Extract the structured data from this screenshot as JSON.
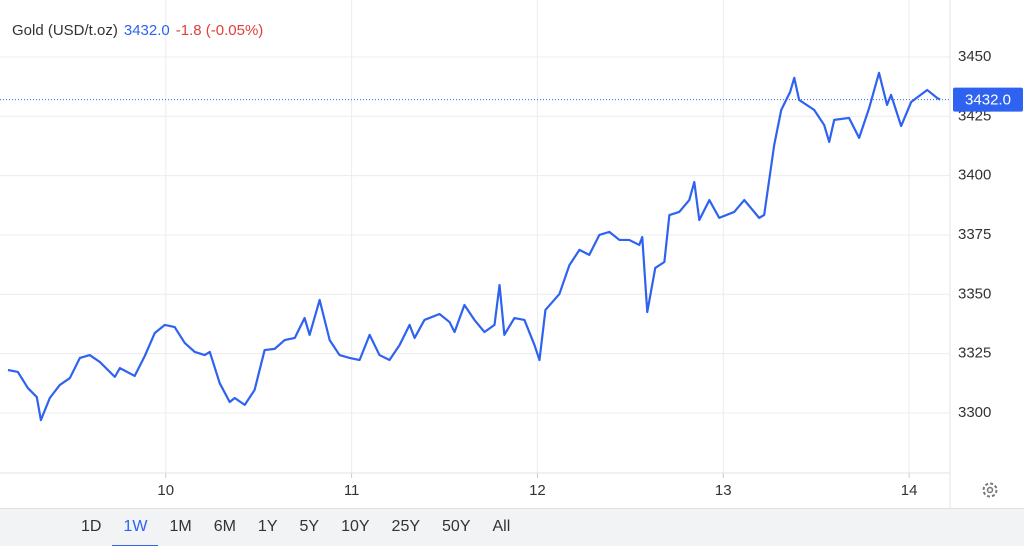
{
  "chart_data": {
    "type": "line",
    "title": "Gold (USD/t.oz)",
    "last_price": {
      "value": 3432,
      "label": "3432.0"
    },
    "change": "-1.8 (-0.05%)",
    "x": [
      9.151,
      9.204,
      9.258,
      9.306,
      9.328,
      9.376,
      9.43,
      9.484,
      9.538,
      9.591,
      9.645,
      9.726,
      9.753,
      9.833,
      9.887,
      9.941,
      9.995,
      10.048,
      10.102,
      10.156,
      10.21,
      10.237,
      10.29,
      10.344,
      10.371,
      10.425,
      10.478,
      10.532,
      10.586,
      10.64,
      10.694,
      10.747,
      10.774,
      10.828,
      10.882,
      10.935,
      10.989,
      11.043,
      11.097,
      11.15,
      11.204,
      11.258,
      11.312,
      11.339,
      11.392,
      11.473,
      11.527,
      11.554,
      11.607,
      11.661,
      11.715,
      11.769,
      11.796,
      11.822,
      11.876,
      11.93,
      11.984,
      12.011,
      12.043,
      12.118,
      12.172,
      12.226,
      12.279,
      12.333,
      12.387,
      12.441,
      12.494,
      12.548,
      12.564,
      12.591,
      12.634,
      12.683,
      12.71,
      12.763,
      12.817,
      12.844,
      12.871,
      12.925,
      12.978,
      13.059,
      13.113,
      13.193,
      13.22,
      13.274,
      13.312,
      13.36,
      13.382,
      13.408,
      13.489,
      13.543,
      13.57,
      13.597,
      13.677,
      13.731,
      13.785,
      13.838,
      13.881,
      13.903,
      13.957,
      14.011,
      14.097,
      14.151,
      14.167
    ],
    "series": [
      {
        "color": "#2e62f0",
        "values": [
          3318.1,
          3317.3,
          3310.5,
          3306.7,
          3297.0,
          3306.3,
          3311.8,
          3314.7,
          3323.2,
          3324.4,
          3321.5,
          3315.2,
          3318.9,
          3315.6,
          3324.0,
          3333.7,
          3337.1,
          3336.2,
          3329.5,
          3325.7,
          3324.4,
          3325.7,
          3312.6,
          3304.6,
          3306.3,
          3303.4,
          3309.7,
          3326.5,
          3327.0,
          3330.7,
          3331.6,
          3340.0,
          3332.9,
          3347.6,
          3330.7,
          3324.4,
          3323.2,
          3322.3,
          3332.9,
          3324.4,
          3322.3,
          3328.6,
          3337.1,
          3331.6,
          3339.2,
          3341.7,
          3338.3,
          3334.1,
          3345.5,
          3339.2,
          3334.1,
          3337.1,
          3353.9,
          3332.9,
          3340.0,
          3339.2,
          3328.6,
          3322.3,
          3343.4,
          3350.1,
          3362.3,
          3368.7,
          3366.6,
          3375.0,
          3376.3,
          3372.9,
          3372.9,
          3370.8,
          3374.1,
          3342.5,
          3361.1,
          3363.6,
          3383.4,
          3384.7,
          3389.7,
          3397.3,
          3381.3,
          3389.7,
          3382.2,
          3384.7,
          3389.7,
          3382.2,
          3383.4,
          3412.9,
          3427.7,
          3435.3,
          3441.2,
          3431.9,
          3427.7,
          3421.3,
          3414.2,
          3423.5,
          3424.3,
          3415.9,
          3428.5,
          3443.3,
          3429.8,
          3434.0,
          3420.9,
          3431.0,
          3436.1,
          3432.7,
          3432.0
        ]
      }
    ],
    "xlim": [
      9.108,
      14.22
    ],
    "xticks": [
      10,
      11,
      12,
      13,
      14
    ],
    "ylim": [
      3274.7,
      3474
    ],
    "yticks": [
      3300,
      3325,
      3350,
      3375,
      3400,
      3425,
      3450
    ],
    "grid": true,
    "ranges": [
      "1D",
      "1W",
      "1M",
      "6M",
      "1Y",
      "5Y",
      "10Y",
      "25Y",
      "50Y",
      "All"
    ],
    "selected_range": "1W"
  }
}
